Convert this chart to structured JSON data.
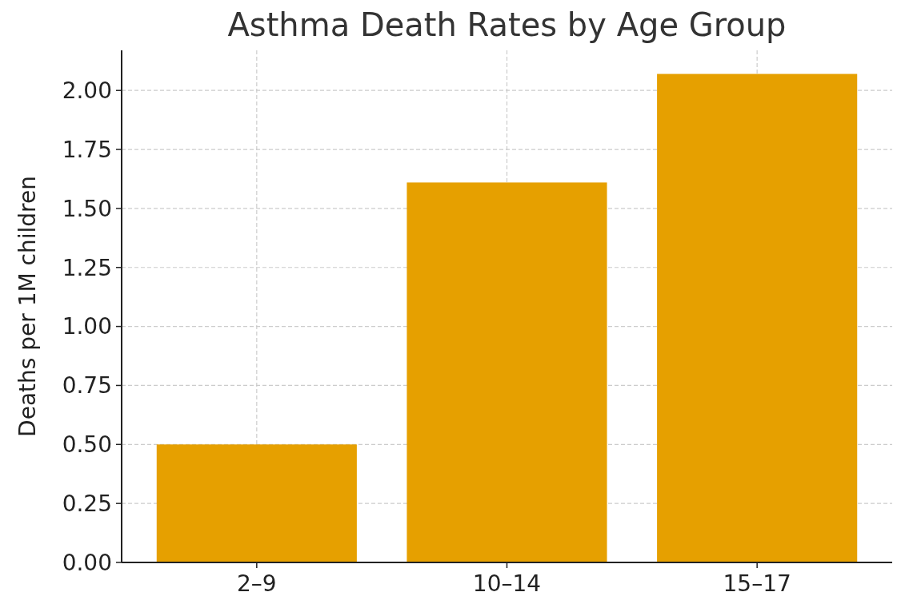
{
  "chart_data": {
    "type": "bar",
    "title": "Asthma Death Rates by Age Group",
    "ylabel": "Deaths per 1M children",
    "categories": [
      "2–9",
      "10–14",
      "15–17"
    ],
    "values": [
      0.5,
      1.61,
      2.07
    ],
    "color": "#e6a000",
    "ylim": [
      0,
      2.17
    ],
    "yticks": [
      {
        "value": 0,
        "label": "0.00"
      },
      {
        "value": 0.25,
        "label": "0.25"
      },
      {
        "value": 0.5,
        "label": "0.50"
      },
      {
        "value": 0.75,
        "label": "0.75"
      },
      {
        "value": 1,
        "label": "1.00"
      },
      {
        "value": 1.25,
        "label": "1.25"
      },
      {
        "value": 1.5,
        "label": "1.50"
      },
      {
        "value": 1.75,
        "label": "1.75"
      },
      {
        "value": 2,
        "label": "2.00"
      }
    ],
    "grid": true
  }
}
